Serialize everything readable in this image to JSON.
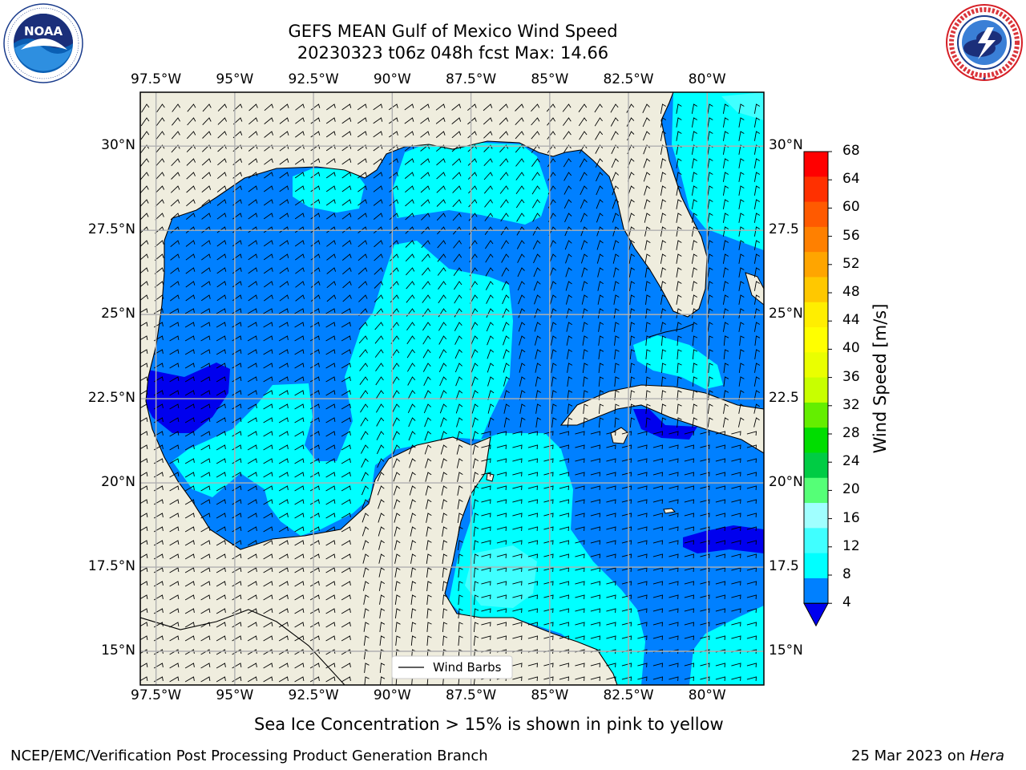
{
  "title": {
    "line1": "GEFS MEAN Gulf of Mexico Wind Speed",
    "line2": "20230323 t06z 048h fcst   Max: 14.66"
  },
  "logos": {
    "left": {
      "icon": "noaa-logo",
      "word": "NOAA",
      "ring_text": "NATIONAL OCEANIC AND ATMOSPHERIC ADMINISTRATION · U.S. DEPARTMENT OF COMMERCE"
    },
    "right": {
      "icon": "nws-logo",
      "ring_text": "NATIONAL WEATHER SERVICE"
    }
  },
  "map": {
    "lon_ticks": [
      "97.5°W",
      "95°W",
      "92.5°W",
      "90°W",
      "87.5°W",
      "85°W",
      "82.5°W",
      "80°W"
    ],
    "lat_ticks_left": [
      "30°N",
      "27.5°N",
      "25°N",
      "22.5°N",
      "20°N",
      "17.5°N",
      "15°N"
    ],
    "lat_ticks_right": [
      "30°N",
      "27.5",
      "25°N",
      "22.5",
      "20°N",
      "17.5",
      "15°N"
    ],
    "lon_range": [
      -98,
      -78.2
    ],
    "lat_range": [
      14,
      31.6
    ],
    "legend_label": "Wind Barbs",
    "colors": {
      "land": "#efedde",
      "grid": "#b0b0b0",
      "band_4_8": "#0080ff",
      "band_8_12": "#00ffff",
      "band_12_16": "#40ffff",
      "band_0_4": "#0000ee"
    }
  },
  "colorbar": {
    "title": "Wind Speed [m/s]",
    "labels": [
      "68",
      "64",
      "60",
      "56",
      "52",
      "48",
      "44",
      "40",
      "36",
      "32",
      "28",
      "24",
      "20",
      "16",
      "12",
      "8",
      "4"
    ],
    "colors": [
      "#ff0000",
      "#ff3000",
      "#ff5a00",
      "#ff8000",
      "#ffa500",
      "#ffc800",
      "#ffee00",
      "#ffff00",
      "#eaff00",
      "#c8ff00",
      "#64ee00",
      "#00dd00",
      "#00cc44",
      "#55ff77",
      "#a0ffff",
      "#40ffff",
      "#00ffff",
      "#0080ff"
    ],
    "under_color": "#0000ee"
  },
  "caption": "Sea Ice Concentration > 15% is shown in pink to yellow",
  "footer": {
    "left": "NCEP/EMC/Verification Post Processing Product Generation Branch",
    "right_prefix": "25 Mar 2023 on ",
    "right_host": "Hera"
  }
}
